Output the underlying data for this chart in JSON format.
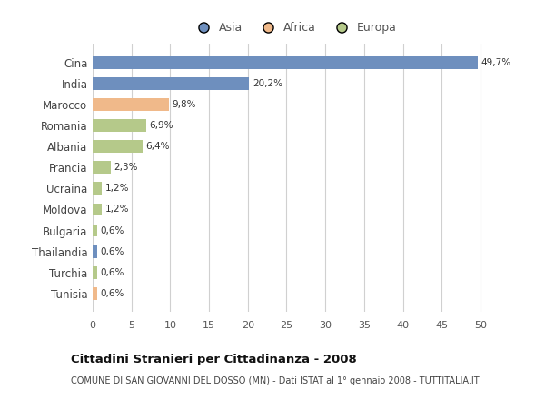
{
  "categories": [
    "Cina",
    "India",
    "Marocco",
    "Romania",
    "Albania",
    "Francia",
    "Ucraina",
    "Moldova",
    "Bulgaria",
    "Thailandia",
    "Turchia",
    "Tunisia"
  ],
  "values": [
    49.7,
    20.2,
    9.8,
    6.9,
    6.4,
    2.3,
    1.2,
    1.2,
    0.6,
    0.6,
    0.6,
    0.6
  ],
  "labels": [
    "49,7%",
    "20,2%",
    "9,8%",
    "6,9%",
    "6,4%",
    "2,3%",
    "1,2%",
    "1,2%",
    "0,6%",
    "0,6%",
    "0,6%",
    "0,6%"
  ],
  "colors": [
    "#6e8fbe",
    "#6e8fbe",
    "#f0b98a",
    "#b5c98a",
    "#b5c98a",
    "#b5c98a",
    "#b5c98a",
    "#b5c98a",
    "#b5c98a",
    "#6e8fbe",
    "#b5c98a",
    "#f0b98a"
  ],
  "legend": [
    {
      "label": "Asia",
      "color": "#6e8fbe"
    },
    {
      "label": "Africa",
      "color": "#f0b98a"
    },
    {
      "label": "Europa",
      "color": "#b5c98a"
    }
  ],
  "xlim": [
    0,
    52
  ],
  "xticks": [
    0,
    5,
    10,
    15,
    20,
    25,
    30,
    35,
    40,
    45,
    50
  ],
  "title": "Cittadini Stranieri per Cittadinanza - 2008",
  "subtitle": "COMUNE DI SAN GIOVANNI DEL DOSSO (MN) - Dati ISTAT al 1° gennaio 2008 - TUTTITALIA.IT",
  "bg_color": "#ffffff",
  "grid_color": "#d0d0d0",
  "bar_height": 0.6
}
